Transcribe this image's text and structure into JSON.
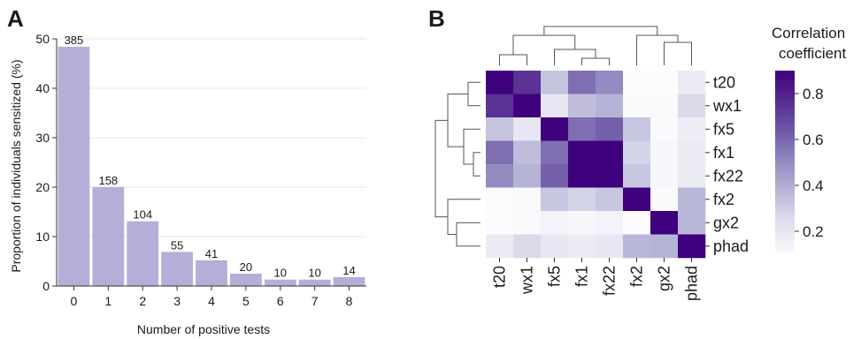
{
  "chart_data": [
    {
      "panel": "A",
      "type": "bar",
      "xlabel": "Number of positive tests",
      "ylabel": "Proportion of individuals sensitized (%)",
      "ylim": [
        0,
        50
      ],
      "yticks": [
        "0",
        "10",
        "20",
        "30",
        "40",
        "50"
      ],
      "categories": [
        "0",
        "1",
        "2",
        "3",
        "4",
        "5",
        "6",
        "7",
        "8"
      ],
      "values": [
        48.4,
        20.0,
        13.1,
        6.9,
        5.2,
        2.5,
        1.3,
        1.3,
        1.8
      ],
      "bar_labels": [
        "385",
        "158",
        "104",
        "55",
        "41",
        "20",
        "10",
        "10",
        "14"
      ],
      "bar_color": "#b3afd8",
      "grid": true
    },
    {
      "panel": "B",
      "type": "heatmap",
      "row_labels": [
        "t20",
        "wx1",
        "fx5",
        "fx1",
        "fx22",
        "fx2",
        "gx2",
        "phad"
      ],
      "col_labels": [
        "t20",
        "wx1",
        "fx5",
        "fx1",
        "fx22",
        "fx2",
        "gx2",
        "phad"
      ],
      "values": [
        [
          0.95,
          0.75,
          0.33,
          0.58,
          0.5,
          0.1,
          0.1,
          0.18
        ],
        [
          0.75,
          0.95,
          0.2,
          0.35,
          0.38,
          0.11,
          0.11,
          0.26
        ],
        [
          0.33,
          0.2,
          0.95,
          0.58,
          0.62,
          0.32,
          0.11,
          0.17
        ],
        [
          0.58,
          0.35,
          0.58,
          0.95,
          0.95,
          0.28,
          0.12,
          0.18
        ],
        [
          0.5,
          0.38,
          0.62,
          0.95,
          0.95,
          0.32,
          0.12,
          0.18
        ],
        [
          0.1,
          0.11,
          0.32,
          0.28,
          0.32,
          0.95,
          0.11,
          0.37
        ],
        [
          0.1,
          0.11,
          0.14,
          0.12,
          0.14,
          0.1,
          0.95,
          0.37
        ],
        [
          0.18,
          0.26,
          0.2,
          0.18,
          0.2,
          0.37,
          0.38,
          0.95
        ]
      ],
      "colorbar": {
        "title_line1": "Correlation",
        "title_line2": "coefficient",
        "ticks": [
          "0.2",
          "0.4",
          "0.6",
          "0.8"
        ],
        "range": [
          0.1,
          0.9
        ],
        "color_low": "#fcfbfd",
        "color_high": "#3f007d"
      },
      "dendrogram": "hierarchical clustering on rows and columns"
    }
  ],
  "panel_labels": {
    "a": "A",
    "b": "B"
  }
}
